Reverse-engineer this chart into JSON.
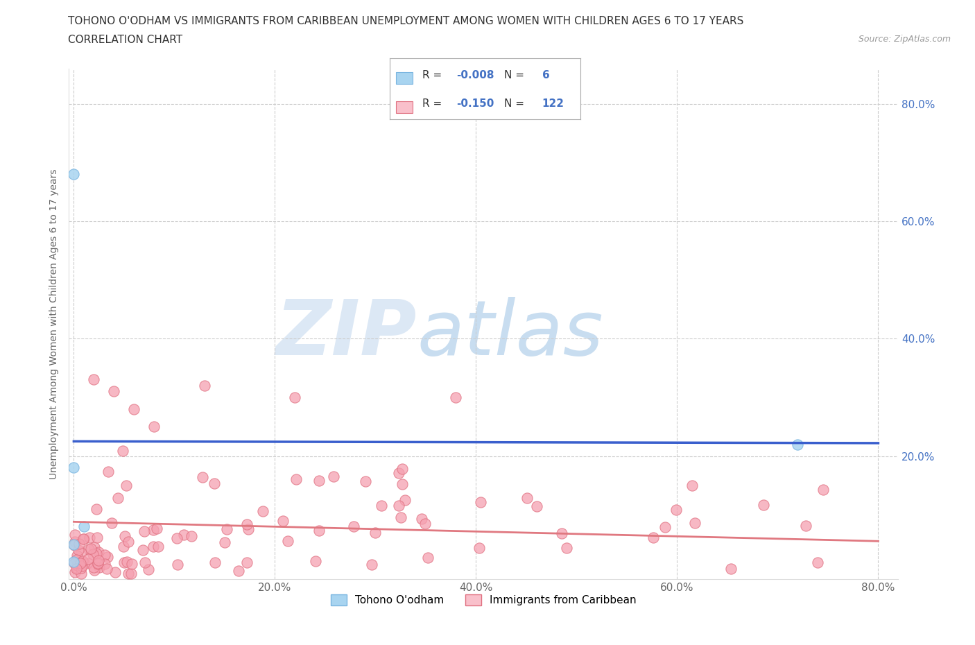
{
  "title_line1": "TOHONO O'ODHAM VS IMMIGRANTS FROM CARIBBEAN UNEMPLOYMENT AMONG WOMEN WITH CHILDREN AGES 6 TO 17 YEARS",
  "title_line2": "CORRELATION CHART",
  "source_text": "Source: ZipAtlas.com",
  "ylabel": "Unemployment Among Women with Children Ages 6 to 17 years",
  "xlim": [
    -0.005,
    0.82
  ],
  "ylim": [
    -0.01,
    0.86
  ],
  "xtick_values": [
    0.0,
    0.2,
    0.4,
    0.6,
    0.8
  ],
  "ytick_values": [
    0.2,
    0.4,
    0.6,
    0.8
  ],
  "grid_color": "#cccccc",
  "background_color": "#ffffff",
  "watermark_zip": "ZIP",
  "watermark_atlas": "atlas",
  "watermark_color": "#dce8f5",
  "series1_name": "Tohono O'odham",
  "series1_legend_color": "#a8d4f0",
  "series1_scatter_color": "#a8d4f0",
  "series1_scatter_edge": "#7ab5e0",
  "series1_line_color": "#3a5fcd",
  "series1_R": -0.008,
  "series1_N": 6,
  "series2_name": "Immigrants from Caribbean",
  "series2_legend_color": "#f9c0cb",
  "series2_scatter_color": "#f5a0b0",
  "series2_scatter_edge": "#e07080",
  "series2_line_color": "#e07880",
  "series2_R": -0.15,
  "series2_N": 122,
  "tick_color": "#4472c4",
  "tick_fontsize": 11,
  "axis_label_fontsize": 10,
  "title_fontsize": 11,
  "legend_border_color": "#aaaaaa"
}
